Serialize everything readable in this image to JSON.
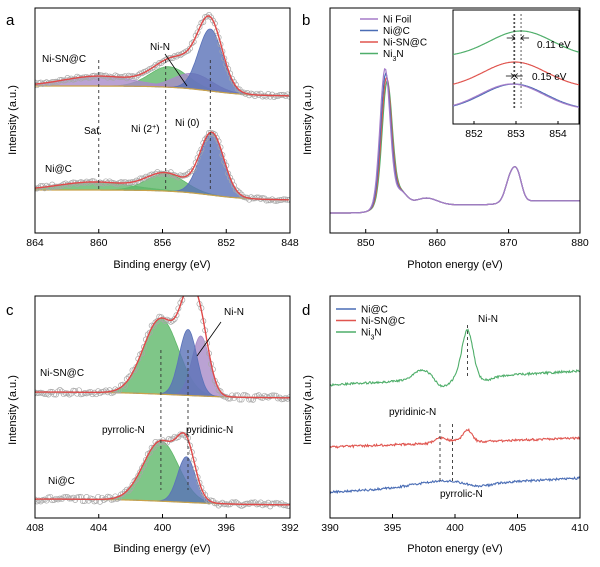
{
  "colors": {
    "envelope": "#e04848",
    "green": "#5fb86a",
    "blue": "#5a72b8",
    "purple": "#a98bc8",
    "background": "#c9a24a",
    "circle": "#a8a8a8",
    "ni_foil": "#a57cc9",
    "ni_c": "#4a6db5",
    "ni_snc": "#e0554f",
    "ni3n": "#4fae6a"
  },
  "chart_data": [
    {
      "panel": "a",
      "type": "line",
      "xlabel": "Binding energy (eV)",
      "ylabel": "Intensity (a.u.)",
      "xlim": [
        864,
        848
      ],
      "x_ticks": [
        864,
        860,
        856,
        852,
        848
      ],
      "reversed_x": true,
      "spectra": [
        {
          "name": "Ni-SN@C",
          "components": [
            {
              "label": "Ni (0)",
              "center": 853.0,
              "height": 1.0,
              "color": "blue"
            },
            {
              "label": "Ni (2+)",
              "center": 855.6,
              "height": 0.33,
              "color": "green"
            },
            {
              "label": "Ni-N",
              "center": 854.1,
              "height": 0.25,
              "color": "purple"
            },
            {
              "label": "Sat.",
              "center": 860.0,
              "height": 0.16,
              "color": "purple"
            }
          ]
        },
        {
          "name": "Ni@C",
          "components": [
            {
              "label": "Ni (0)",
              "center": 852.9,
              "height": 1.0,
              "color": "blue"
            },
            {
              "label": "Ni (2+)",
              "center": 855.8,
              "height": 0.28,
              "color": "green"
            },
            {
              "label": "Sat.",
              "center": 860.3,
              "height": 0.13,
              "color": "green"
            }
          ]
        }
      ],
      "annotations": [
        "Ni-SN@C",
        "Ni@C",
        "Ni-N",
        "Sat.",
        "Ni (2+)",
        "Ni (0)"
      ],
      "reference_lines": [
        860.0,
        855.8,
        853.0
      ]
    },
    {
      "panel": "b",
      "type": "line",
      "xlabel": "Photon energy (eV)",
      "ylabel": "Intensity (a.u.)",
      "xlim": [
        845,
        880
      ],
      "x_ticks": [
        850,
        860,
        870,
        880
      ],
      "series": [
        {
          "name": "Ni Foil",
          "color": "ni_foil",
          "L3_peak": 852.7,
          "L3_height": 1.0
        },
        {
          "name": "Ni@C",
          "color": "ni_c",
          "L3_peak": 852.8,
          "L3_height": 0.96
        },
        {
          "name": "Ni-SN@C",
          "color": "ni_snc",
          "L3_peak": 852.9,
          "L3_height": 0.93
        },
        {
          "name": "Ni3N",
          "color": "ni3n",
          "L3_peak": 853.0,
          "L3_height": 0.9
        }
      ],
      "L2_peak": 870.3,
      "inset": {
        "xlim": [
          851.5,
          854.5
        ],
        "x_ticks": [
          852,
          853,
          854
        ],
        "peaks": {
          "Ni Foil": 852.9,
          "Ni@C": 852.95,
          "Ni-SN@C": 852.97,
          "Ni3N": 853.12
        },
        "shifts": [
          "0.11 eV",
          "0.15 eV"
        ]
      }
    },
    {
      "panel": "c",
      "type": "line",
      "xlabel": "Binding energy (eV)",
      "ylabel": "Intensity (a.u.)",
      "xlim": [
        408,
        392
      ],
      "x_ticks": [
        408,
        404,
        400,
        396,
        392
      ],
      "reversed_x": true,
      "spectra": [
        {
          "name": "Ni-SN@C",
          "components": [
            {
              "label": "pyrrolic-N",
              "center": 400.1,
              "height": 0.63,
              "color": "green"
            },
            {
              "label": "pyridinic-N",
              "center": 398.4,
              "height": 0.55,
              "color": "blue"
            },
            {
              "label": "Ni-N",
              "center": 397.6,
              "height": 0.5,
              "color": "purple"
            }
          ]
        },
        {
          "name": "Ni@C",
          "components": [
            {
              "label": "pyrrolic-N",
              "center": 400.1,
              "height": 0.5,
              "color": "green"
            },
            {
              "label": "pyridinic-N",
              "center": 398.5,
              "height": 0.38,
              "color": "blue"
            }
          ]
        }
      ],
      "annotations": [
        "Ni-SN@C",
        "Ni@C",
        "Ni-N",
        "pyrrolic-N",
        "pyridinic-N"
      ],
      "reference_lines": [
        400.1,
        398.4
      ]
    },
    {
      "panel": "d",
      "type": "line",
      "xlabel": "Photon energy (eV)",
      "ylabel": "Intensity (a.u.)",
      "xlim": [
        390,
        410
      ],
      "x_ticks": [
        390,
        395,
        400,
        405,
        410
      ],
      "series": [
        {
          "name": "Ni@C",
          "color": "ni_c"
        },
        {
          "name": "Ni-SN@C",
          "color": "ni_snc"
        },
        {
          "name": "Ni3N",
          "color": "ni3n"
        }
      ],
      "features": {
        "Ni-N": 401.0,
        "pyridinic-N": 398.8,
        "pyrrolic-N": 399.8
      },
      "annotations": [
        "Ni-N",
        "pyridinic-N",
        "pyrrolic-N"
      ]
    }
  ]
}
